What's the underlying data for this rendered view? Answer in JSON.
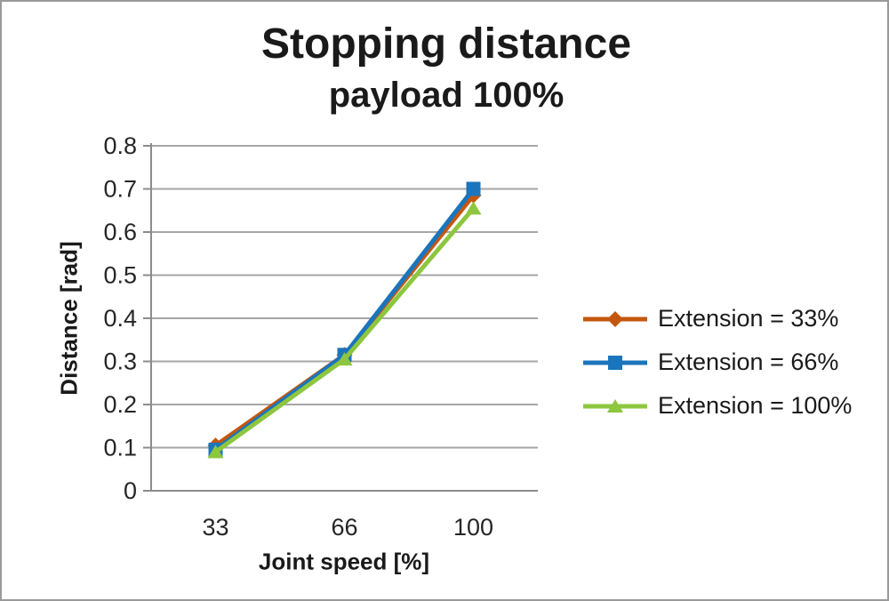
{
  "chart_data": {
    "type": "line",
    "title": "Stopping distance",
    "subtitle": "payload 100%",
    "xlabel": "Joint speed [%]",
    "ylabel": "Distance [rad]",
    "categories": [
      "33",
      "66",
      "100"
    ],
    "series": [
      {
        "name": "Extension = 33%",
        "color": "#c4570f",
        "marker": "diamond",
        "values": [
          0.105,
          0.315,
          0.685
        ]
      },
      {
        "name": "Extension = 66%",
        "color": "#1b75bc",
        "marker": "square",
        "values": [
          0.095,
          0.315,
          0.7
        ]
      },
      {
        "name": "Extension = 100%",
        "color": "#8dc63f",
        "marker": "triangle",
        "values": [
          0.09,
          0.305,
          0.655
        ]
      }
    ],
    "ylim": [
      0,
      0.8
    ],
    "ytick_labels": [
      "0",
      "0.1",
      "0.2",
      "0.3",
      "0.4",
      "0.5",
      "0.6",
      "0.7",
      "0.8"
    ],
    "grid": true,
    "legend_position": "right",
    "colors": {
      "gridline": "#a6a6a6",
      "axis": "#8c8c8c",
      "text": "#262626",
      "title_text": "#1a1a1a",
      "border": "#9a9a9a",
      "background": "#ffffff"
    }
  }
}
